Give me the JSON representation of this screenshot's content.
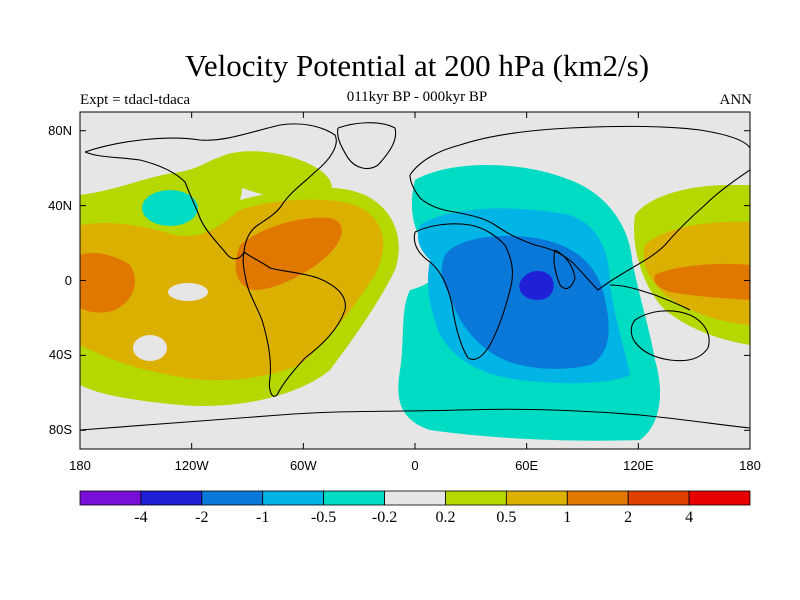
{
  "title": "Velocity Potential at 200 hPa (km2/s)",
  "subtitle": "011kyr BP - 000kyr BP",
  "left_label": "Expt = tdacl-tdaca",
  "right_label": "ANN",
  "chart_data": {
    "type": "heatmap",
    "projection": "cylindrical-equidistant",
    "lon_range": [
      -180,
      180
    ],
    "lat_range": [
      -90,
      90
    ],
    "x_ticks": [
      {
        "value": -180,
        "label": "180"
      },
      {
        "value": -120,
        "label": "120W"
      },
      {
        "value": -60,
        "label": "60W"
      },
      {
        "value": 0,
        "label": "0"
      },
      {
        "value": 60,
        "label": "60E"
      },
      {
        "value": 120,
        "label": "120E"
      },
      {
        "value": 180,
        "label": "180"
      }
    ],
    "y_ticks": [
      {
        "value": 80,
        "label": "80N"
      },
      {
        "value": 40,
        "label": "40N"
      },
      {
        "value": 0,
        "label": "0"
      },
      {
        "value": -40,
        "label": "40S"
      },
      {
        "value": -80,
        "label": "80S"
      }
    ],
    "colorbar": {
      "colors": [
        "#7a10d8",
        "#2020d8",
        "#0a78d8",
        "#00b4e6",
        "#00dcc4",
        "#e6e6e6",
        "#b4d800",
        "#dcb000",
        "#e07800",
        "#e04000",
        "#e80000"
      ],
      "levels": [
        "-4",
        "-2",
        "-1",
        "-0.5",
        "-0.2",
        "0.2",
        "0.5",
        "1",
        "2",
        "4"
      ]
    },
    "features": [
      {
        "sign": "positive",
        "level": 1,
        "center_lon": -170,
        "center_lat": 0,
        "note": "central Pacific maximum"
      },
      {
        "sign": "positive",
        "level": 1,
        "center_lon": -70,
        "center_lat": 15,
        "note": "Caribbean / South America maximum"
      },
      {
        "sign": "positive",
        "level": 1,
        "center_lon": 150,
        "center_lat": 0,
        "note": "western Pacific maximum"
      },
      {
        "sign": "negative",
        "level": -2,
        "center_lon": 65,
        "center_lat": 0,
        "note": "Indian Ocean minimum"
      },
      {
        "sign": "negative",
        "level": -0.2,
        "center_lon": -140,
        "center_lat": 40,
        "note": "North Pacific weak minimum"
      }
    ]
  }
}
